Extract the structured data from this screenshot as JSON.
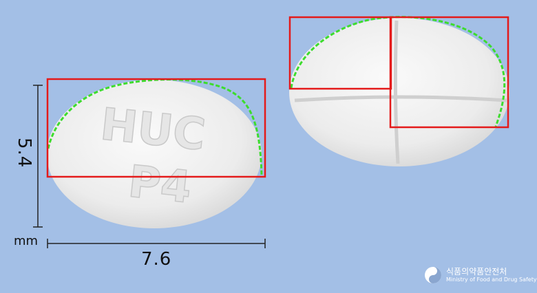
{
  "dimensions": {
    "width_value": "7.6",
    "height_value": "5.4",
    "unit": "mm"
  },
  "tablet_front": {
    "imprint_line1": "HUC",
    "imprint_line2": "P4"
  },
  "logo": {
    "korean_name": "식품의약품안전처",
    "english_name": "Ministry of Food and Drug Safety"
  },
  "colors": {
    "background": "#a3bfe6",
    "tablet": "#efefef",
    "box_outline": "#e41a1a",
    "edge_trace": "#3ddc2e",
    "dimension_line": "#222222"
  }
}
